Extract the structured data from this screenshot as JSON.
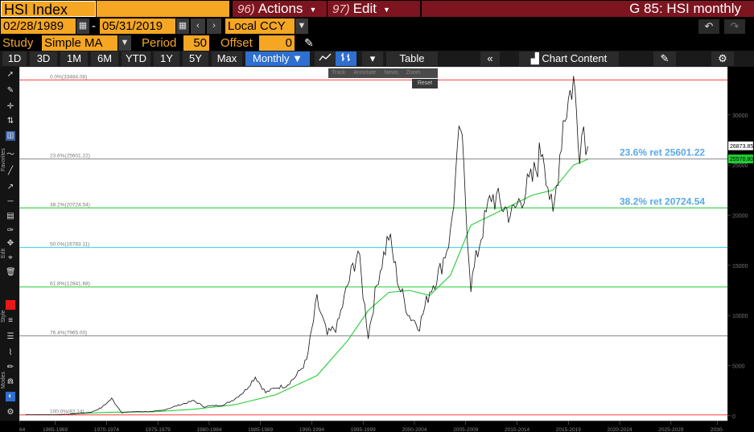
{
  "header": {
    "ticker": "HSI Index",
    "actions": {
      "num": "96)",
      "label": "Actions"
    },
    "edit": {
      "num": "97)",
      "label": "Edit"
    },
    "chart_title": "G 85: HSI monthly"
  },
  "dates": {
    "start": "02/28/1989",
    "sep": "-",
    "end": "05/31/2019",
    "currency": "Local CCY"
  },
  "study": {
    "label": "Study",
    "value": "Simple MA",
    "period_label": "Period",
    "period": "50",
    "offset_label": "Offset",
    "offset": "0"
  },
  "toolbar": {
    "ranges": [
      "1D",
      "3D",
      "1M",
      "6M",
      "YTD",
      "1Y",
      "5Y",
      "Max"
    ],
    "frequency": "Monthly",
    "table": "Table",
    "chart_content": "Chart Content"
  },
  "left_tools": {
    "favorites": "Favorites",
    "edit": "Edit",
    "style": "Style",
    "modes": "Modes"
  },
  "float_tools": {
    "track": "Track",
    "annotate": "Annotate",
    "news": "News",
    "zoom": "Zoom",
    "reset": "Reset"
  },
  "colors": {
    "price": "#ffffff",
    "ma": "#22cc33",
    "fib_top": "#ff3b3b",
    "fib_green": "#22cc33",
    "fib_cyan": "#33ccee",
    "fib_grey": "#888888",
    "label_blue": "#5aa8e8"
  },
  "chart_data": {
    "type": "line",
    "ylim": [
      -500,
      34800
    ],
    "xlim": [
      1964,
      2033
    ],
    "y_ticks": [
      "30000",
      "25000",
      "20000",
      "15000",
      "10000",
      "5000",
      "0"
    ],
    "y_tick_values": [
      30000,
      25000,
      20000,
      15000,
      10000,
      5000,
      0
    ],
    "x_tick_labels": [
      "1964",
      "1965-1969",
      "1970-1974",
      "1975-1979",
      "1980-1984",
      "1985-1989",
      "1990-1994",
      "1995-1999",
      "2000-2004",
      "2005-2009",
      "2010-2014",
      "2015-2019",
      "2020-2024",
      "2025-2029",
      "2030-"
    ],
    "x_tick_values": [
      1964,
      1967.5,
      1972.5,
      1977.5,
      1982.5,
      1987.5,
      1992.5,
      1997.5,
      2002.5,
      2007.5,
      2012.5,
      2017.5,
      2022.5,
      2027.5,
      2032
    ],
    "fib_levels": [
      {
        "label": "0.0%(33484.08)",
        "value": 33484.08,
        "color": "#ff3b3b"
      },
      {
        "label": "23.6%(25601.22)",
        "value": 25601.22,
        "color": "#888888"
      },
      {
        "label": "38.2%(20724.54)",
        "value": 20724.54,
        "color": "#22cc33"
      },
      {
        "label": "50.0%(16783.11)",
        "value": 16783.11,
        "color": "#33ccee"
      },
      {
        "label": "61.8%(12841.68)",
        "value": 12841.68,
        "color": "#22cc33"
      },
      {
        "label": "76.4%(7965.00)",
        "value": 7965.0,
        "color": "#888888"
      },
      {
        "label": "100.0%(82.14)",
        "value": 82.14,
        "color": "#ff3b3b"
      }
    ],
    "annotations": [
      {
        "text": "23.6% ret 25601.22",
        "value": 25601.22
      },
      {
        "text": "38.2% ret 20724.54",
        "value": 20724.54
      }
    ],
    "last_price": "26873.85",
    "ma_last": "25570.80",
    "series": [
      {
        "type": "price",
        "points": [
          [
            1964.6,
            100
          ],
          [
            1967,
            90
          ],
          [
            1969,
            150
          ],
          [
            1971,
            350
          ],
          [
            1972,
            800
          ],
          [
            1973,
            1700
          ],
          [
            1974,
            300
          ],
          [
            1975,
            400
          ],
          [
            1977,
            420
          ],
          [
            1978,
            550
          ],
          [
            1980,
            1200
          ],
          [
            1981,
            1500
          ],
          [
            1982,
            900
          ],
          [
            1983,
            1000
          ],
          [
            1984,
            1100
          ],
          [
            1985,
            1700
          ],
          [
            1986,
            2500
          ],
          [
            1987,
            3900
          ],
          [
            1988,
            2300
          ],
          [
            1989,
            2800
          ],
          [
            1990,
            3000
          ],
          [
            1991,
            4000
          ],
          [
            1992,
            5500
          ],
          [
            1993,
            11500
          ],
          [
            1994,
            8000
          ],
          [
            1995,
            9000
          ],
          [
            1996,
            13000
          ],
          [
            1997,
            16500
          ],
          [
            1998,
            8000
          ],
          [
            1999,
            14000
          ],
          [
            2000,
            18000
          ],
          [
            2001,
            13000
          ],
          [
            2002,
            10000
          ],
          [
            2003,
            9000
          ],
          [
            2004,
            12500
          ],
          [
            2005,
            14500
          ],
          [
            2006,
            18000
          ],
          [
            2007,
            29000
          ],
          [
            2008,
            13000
          ],
          [
            2009,
            18000
          ],
          [
            2010,
            22000
          ],
          [
            2011,
            21000
          ],
          [
            2012,
            20000
          ],
          [
            2013,
            22000
          ],
          [
            2014,
            23500
          ],
          [
            2015,
            27000
          ],
          [
            2016,
            19500
          ],
          [
            2017,
            29500
          ],
          [
            2018,
            33484
          ],
          [
            2018.6,
            27000
          ],
          [
            2019,
            29000
          ],
          [
            2019.4,
            26873
          ]
        ]
      },
      {
        "type": "ma",
        "points": [
          [
            1969,
            200
          ],
          [
            1973,
            350
          ],
          [
            1977,
            380
          ],
          [
            1981,
            650
          ],
          [
            1985,
            1100
          ],
          [
            1989,
            2100
          ],
          [
            1993,
            4000
          ],
          [
            1996,
            7500
          ],
          [
            1998,
            10500
          ],
          [
            2000,
            12300
          ],
          [
            2002,
            12500
          ],
          [
            2004,
            12000
          ],
          [
            2006,
            14000
          ],
          [
            2008,
            19000
          ],
          [
            2010,
            20000
          ],
          [
            2012,
            21000
          ],
          [
            2014,
            22000
          ],
          [
            2016,
            22500
          ],
          [
            2018,
            25000
          ],
          [
            2019.4,
            25570
          ]
        ]
      }
    ]
  }
}
